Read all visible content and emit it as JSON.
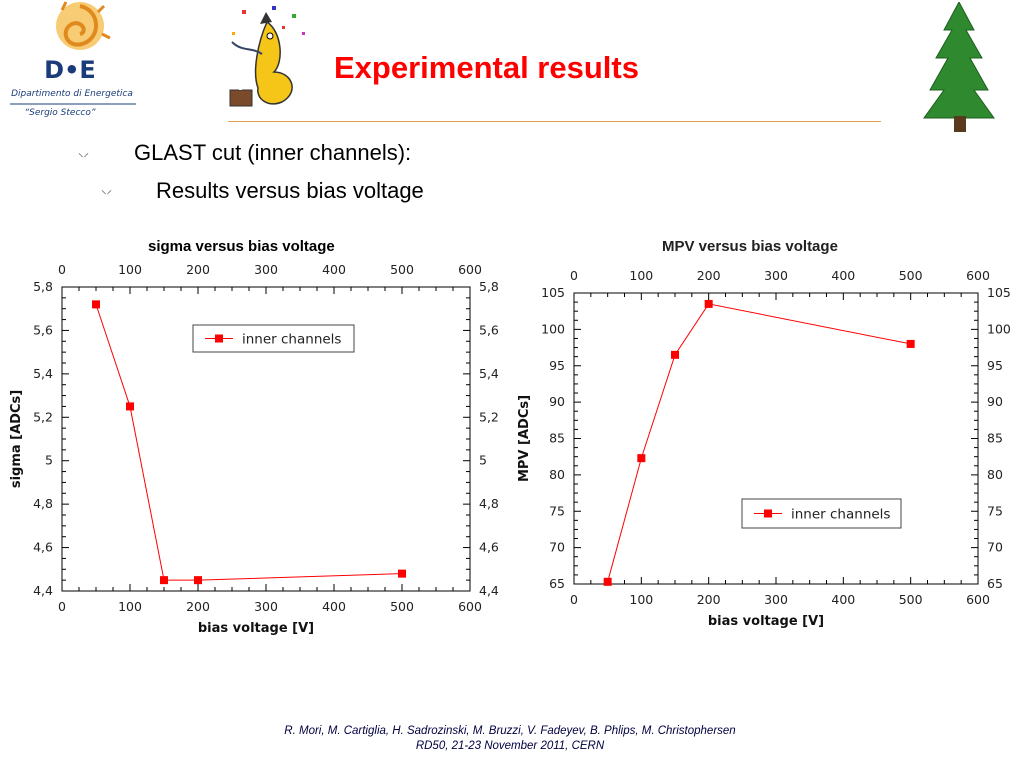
{
  "slide": {
    "title": "Experimental results",
    "bullets": [
      {
        "text": "GLAST cut (inner channels):"
      },
      {
        "text": "Results versus bias voltage"
      }
    ],
    "footer_line1": "R. Mori, M. Cartiglia, H. Sadrozinski, M. Bruzzi, V. Fadeyev, B. Phlips, M. Christophersen",
    "footer_line2": "RD50, 21-23 November 2011, CERN",
    "logo": {
      "line1": "D•E",
      "line2": "Dipartimento di Energetica",
      "line3": "“Sergio Stecco”"
    },
    "accent_color": "#ff0000",
    "icons": [
      "logo-icon",
      "mascot-icon",
      "tree-icon"
    ]
  },
  "chart_data": [
    {
      "type": "line",
      "title": "sigma versus bias voltage",
      "xlabel": "bias voltage   [V]",
      "ylabel": "sigma   [ADCs]",
      "xlim": [
        0,
        600
      ],
      "ylim": [
        4.4,
        5.8
      ],
      "xticks": [
        0,
        100,
        200,
        300,
        400,
        500,
        600
      ],
      "yticks": [
        "4,4",
        "4,6",
        "4,8",
        "5",
        "5,2",
        "5,4",
        "5,6",
        "5,8"
      ],
      "ytick_values": [
        4.4,
        4.6,
        4.8,
        5.0,
        5.2,
        5.4,
        5.6,
        5.8
      ],
      "legend_position": "top-center",
      "series": [
        {
          "name": "inner channels",
          "color": "#ff0000",
          "x": [
            50,
            100,
            150,
            200,
            500
          ],
          "y": [
            5.72,
            5.25,
            4.45,
            4.45,
            4.48
          ]
        }
      ]
    },
    {
      "type": "line",
      "title": "MPV versus bias voltage",
      "xlabel": "bias voltage   [V]",
      "ylabel": "MPV   [ADCs]",
      "xlim": [
        0,
        600
      ],
      "ylim": [
        65,
        105
      ],
      "xticks": [
        0,
        100,
        200,
        300,
        400,
        500,
        600
      ],
      "yticks": [
        "65",
        "70",
        "75",
        "80",
        "85",
        "90",
        "95",
        "100",
        "105"
      ],
      "ytick_values": [
        65,
        70,
        75,
        80,
        85,
        90,
        95,
        100,
        105
      ],
      "legend_position": "bottom-right",
      "series": [
        {
          "name": "inner channels",
          "color": "#ff0000",
          "x": [
            50,
            100,
            150,
            200,
            500
          ],
          "y": [
            65.3,
            82.3,
            96.5,
            103.5,
            98.0
          ]
        }
      ]
    }
  ]
}
